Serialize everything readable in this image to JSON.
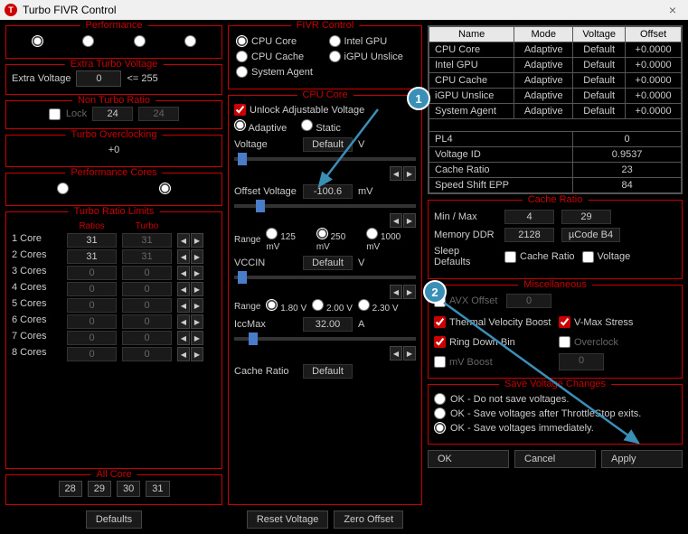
{
  "window": {
    "title": "Turbo FIVR Control"
  },
  "performance": {
    "title": "Performance",
    "selected": 0,
    "count": 4
  },
  "extra_turbo": {
    "title": "Extra Turbo Voltage",
    "label": "Extra Voltage",
    "value": "0",
    "suffix": "<= 255"
  },
  "non_turbo": {
    "title": "Non Turbo Ratio",
    "lock": "Lock",
    "v1": "24",
    "v2": "24"
  },
  "turbo_oc": {
    "title": "Turbo Overclocking",
    "value": "+0"
  },
  "perf_cores": {
    "title": "Performance Cores",
    "count": 2,
    "selected": 1
  },
  "turbo_limits": {
    "title": "Turbo Ratio Limits",
    "cols": [
      "Ratios",
      "Turbo"
    ],
    "rows": [
      {
        "label": "1 Core",
        "r": "31",
        "t": "31"
      },
      {
        "label": "2 Cores",
        "r": "31",
        "t": "31"
      },
      {
        "label": "3 Cores",
        "r": "0",
        "t": "0"
      },
      {
        "label": "4 Cores",
        "r": "0",
        "t": "0"
      },
      {
        "label": "5 Cores",
        "r": "0",
        "t": "0"
      },
      {
        "label": "6 Cores",
        "r": "0",
        "t": "0"
      },
      {
        "label": "7 Cores",
        "r": "0",
        "t": "0"
      },
      {
        "label": "8 Cores",
        "r": "0",
        "t": "0"
      }
    ]
  },
  "all_core": {
    "title": "All Core",
    "values": [
      "28",
      "29",
      "30",
      "31"
    ]
  },
  "defaults_btn": "Defaults",
  "fivr": {
    "title": "FIVR Control",
    "opts": [
      "CPU Core",
      "Intel GPU",
      "CPU Cache",
      "iGPU Unslice",
      "System Agent"
    ],
    "selected": 0
  },
  "cpu_core": {
    "title": "CPU Core",
    "unlock": "Unlock Adjustable Voltage",
    "mode_adaptive": "Adaptive",
    "mode_static": "Static",
    "voltage_lbl": "Voltage",
    "voltage_val": "Default",
    "voltage_unit": "V",
    "offset_lbl": "Offset Voltage",
    "offset_val": "-100.6",
    "offset_unit": "mV",
    "range_lbl": "Range",
    "range_opts": [
      "125 mV",
      "250 mV",
      "1000 mV"
    ],
    "vccin_lbl": "VCCIN",
    "vccin_val": "Default",
    "vccin_unit": "V",
    "vccin_range": [
      "1.80 V",
      "2.00 V",
      "2.30 V"
    ],
    "iccmax_lbl": "IccMax",
    "iccmax_val": "32.00",
    "iccmax_unit": "A",
    "cache_lbl": "Cache Ratio",
    "cache_val": "Default"
  },
  "reset_btn": "Reset Voltage",
  "zero_btn": "Zero Offset",
  "voltage_table": {
    "headers": [
      "Name",
      "Mode",
      "Voltage",
      "Offset"
    ],
    "rows": [
      [
        "CPU Core",
        "Adaptive",
        "Default",
        "+0.0000"
      ],
      [
        "Intel GPU",
        "Adaptive",
        "Default",
        "+0.0000"
      ],
      [
        "CPU Cache",
        "Adaptive",
        "Default",
        "+0.0000"
      ],
      [
        "iGPU Unslice",
        "Adaptive",
        "Default",
        "+0.0000"
      ],
      [
        "System Agent",
        "Adaptive",
        "Default",
        "+0.0000"
      ]
    ],
    "extra": [
      [
        "PL4",
        "",
        "0",
        ""
      ],
      [
        "Voltage ID",
        "",
        "0.9537",
        ""
      ],
      [
        "Cache Ratio",
        "",
        "23",
        ""
      ],
      [
        "Speed Shift EPP",
        "",
        "84",
        ""
      ]
    ]
  },
  "cache_ratio": {
    "title": "Cache Ratio",
    "minmax": "Min / Max",
    "min": "4",
    "max": "29",
    "mem_lbl": "Memory DDR",
    "mem": "2128",
    "ucode": "µCode B4",
    "sleep": "Sleep Defaults",
    "cr_chk": "Cache Ratio",
    "v_chk": "Voltage"
  },
  "misc": {
    "title": "Miscellaneous",
    "avx": "AVX Offset",
    "avx_val": "0",
    "tvb": "Thermal Velocity Boost",
    "vmax": "V-Max Stress",
    "rdb": "Ring Down Bin",
    "oc": "Overclock",
    "mvb": "mV Boost",
    "mvb_val": "0"
  },
  "save": {
    "title": "Save Voltage Changes",
    "o1": "OK - Do not save voltages.",
    "o2": "OK - Save voltages after ThrottleStop exits.",
    "o3": "OK - Save voltages immediately."
  },
  "ok": "OK",
  "cancel": "Cancel",
  "apply": "Apply",
  "badges": {
    "b1": "1",
    "b2": "2"
  }
}
